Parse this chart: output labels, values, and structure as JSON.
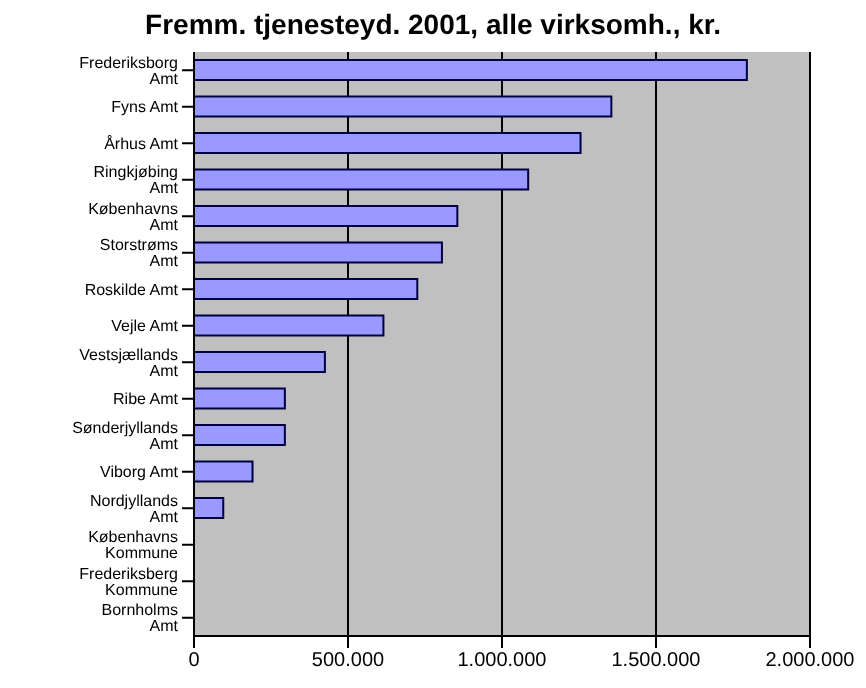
{
  "chart_data": {
    "type": "bar",
    "orientation": "horizontal",
    "title": "Fremm. tjenesteyd. 2001, alle virksomh., kr.",
    "categories": [
      "Frederiksborg Amt",
      "Fyns Amt",
      "Århus Amt",
      "Ringkjøbing Amt",
      "Københavns Amt",
      "Storstrøms Amt",
      "Roskilde Amt",
      "Vejle Amt",
      "Vestsjællands Amt",
      "Ribe Amt",
      "Sønderjyllands Amt",
      "Viborg Amt",
      "Nordjyllands Amt",
      "Københavns Kommune",
      "Frederiksberg Kommune",
      "Bornholms Amt"
    ],
    "values": [
      1795000,
      1355000,
      1255000,
      1085000,
      855000,
      805000,
      725000,
      615000,
      425000,
      295000,
      295000,
      190000,
      95000,
      0,
      0,
      0
    ],
    "color": "#9999ff",
    "xlim": [
      0,
      2000000
    ],
    "xticks": [
      0,
      {
        "value": 500000,
        "label": "500.000"
      },
      {
        "value": 1000000,
        "label": "1.000.000"
      },
      {
        "value": 1500000,
        "label": "1.500.000"
      },
      {
        "value": 2000000,
        "label": "2.000.000"
      }
    ],
    "grid": "x"
  }
}
